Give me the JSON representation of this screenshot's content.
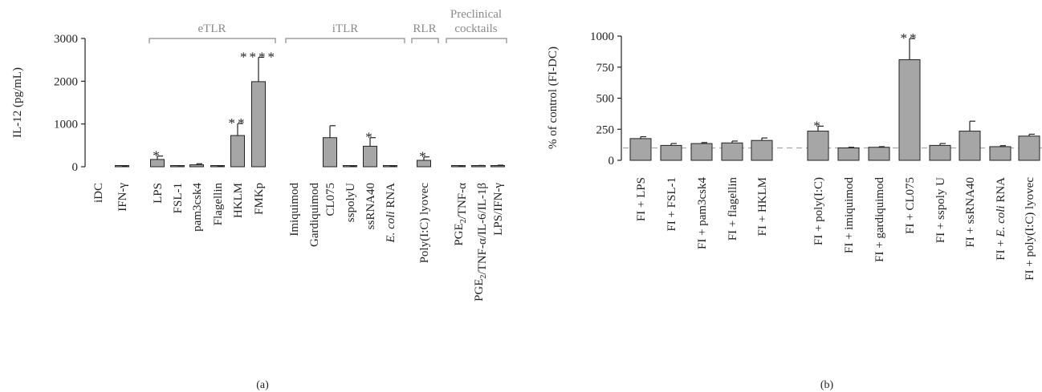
{
  "chart_data": [
    {
      "type": "bar",
      "panel_label": "(a)",
      "ylabel": "IL-12 (pg/mL)",
      "ylim": [
        0,
        3000
      ],
      "yticks": [
        0,
        1000,
        2000,
        3000
      ],
      "categories": [
        "iDC",
        "IFN-γ",
        "LPS",
        "FSL-1",
        "pam3csk4",
        "Flagellin",
        "HKLM",
        "FMKp",
        "Imiquimod",
        "Gardiquimod",
        "CL075",
        "sspolyU",
        "ssRNA40",
        "E. coli RNA",
        "Poly(I:C) lyovec",
        "PGE₂/TNF-α",
        "PGE₂/TNF-α/IL-6/IL-1β",
        "LPS/IFN-γ"
      ],
      "values": [
        0,
        10,
        170,
        15,
        45,
        10,
        730,
        1990,
        0,
        0,
        680,
        10,
        480,
        5,
        150,
        15,
        20,
        25
      ],
      "errors": [
        0,
        5,
        80,
        10,
        25,
        5,
        280,
        570,
        0,
        0,
        280,
        5,
        200,
        3,
        80,
        8,
        10,
        12
      ],
      "significance": [
        "",
        "",
        "*",
        "",
        "",
        "",
        "**",
        "****",
        "",
        "",
        "",
        "",
        "*",
        "",
        "*",
        "",
        "",
        ""
      ],
      "groups": [
        {
          "label": "eTLR"
        },
        {
          "label": "iTLR"
        },
        {
          "label": "RLR"
        },
        {
          "label": "Preclinical cocktails"
        }
      ]
    },
    {
      "type": "bar",
      "panel_label": "(b)",
      "ylabel": "% of control (FI-DC)",
      "ylim": [
        0,
        1000
      ],
      "yticks": [
        0,
        250,
        500,
        750,
        1000
      ],
      "reference_line": 100,
      "categories": [
        "FI + LPS",
        "FI + FSL-1",
        "FI + pam3csk4",
        "FI + flagellin",
        "FI + HKLM",
        "FI + poly(I:C)",
        "FI + imiquimod",
        "FI + gardiquimod",
        "FI + CL075",
        "FI + sspoly U",
        "FI + ssRNA40",
        "FI + E. coli RNA",
        "FI + poly(I:C) lyovec"
      ],
      "values": [
        175,
        120,
        135,
        140,
        160,
        235,
        100,
        105,
        810,
        120,
        235,
        110,
        195
      ],
      "errors": [
        15,
        15,
        8,
        15,
        20,
        40,
        5,
        5,
        170,
        15,
        80,
        8,
        15
      ],
      "significance": [
        "",
        "",
        "",
        "",
        "",
        "*",
        "",
        "",
        "**",
        "",
        "",
        "",
        ""
      ]
    }
  ]
}
